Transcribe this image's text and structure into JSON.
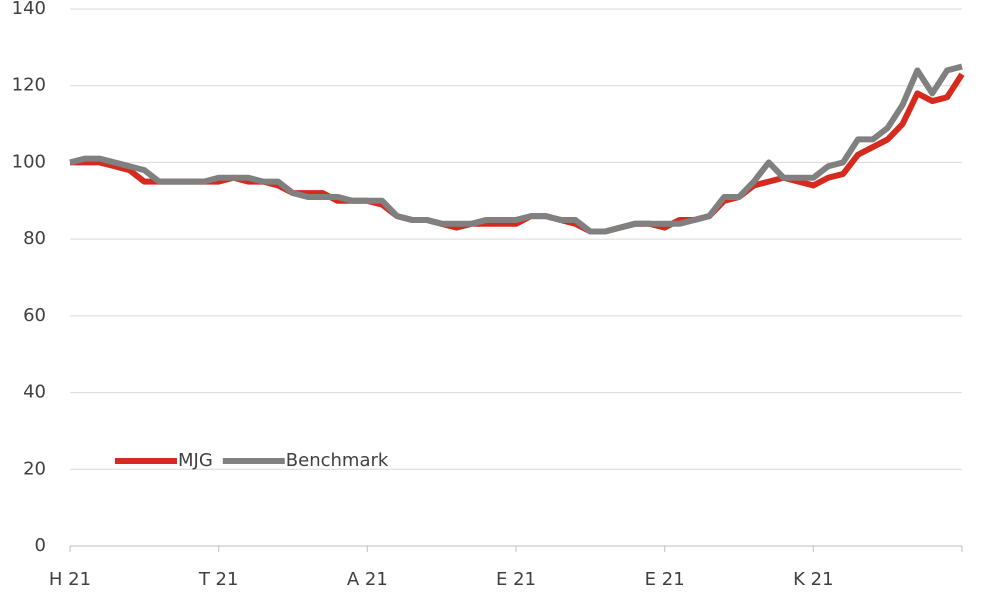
{
  "chart_data": {
    "type": "line",
    "categories": [
      "H 21",
      null,
      null,
      null,
      null,
      null,
      null,
      null,
      null,
      null,
      "T 21",
      null,
      null,
      null,
      null,
      null,
      null,
      null,
      null,
      null,
      "A 21",
      null,
      null,
      null,
      null,
      null,
      null,
      null,
      null,
      null,
      "E 21",
      null,
      null,
      null,
      null,
      null,
      null,
      null,
      null,
      null,
      "E 21",
      null,
      null,
      null,
      null,
      null,
      null,
      null,
      null,
      null,
      "K 21",
      null,
      null,
      null,
      null,
      null,
      null,
      null,
      null,
      null,
      null
    ],
    "series": [
      {
        "name": "MJG",
        "color": "#d52b1e",
        "values": [
          100,
          100,
          100,
          99,
          98,
          95,
          95,
          95,
          95,
          95,
          95,
          96,
          95,
          95,
          94,
          92,
          92,
          92,
          90,
          90,
          90,
          89,
          86,
          85,
          85,
          84,
          83,
          84,
          84,
          84,
          84,
          86,
          86,
          85,
          84,
          82,
          82,
          83,
          84,
          84,
          83,
          85,
          85,
          86,
          90,
          91,
          94,
          95,
          96,
          95,
          94,
          96,
          97,
          102,
          104,
          106,
          110,
          118,
          116,
          117,
          123
        ]
      },
      {
        "name": "Benchmark",
        "color": "#808080",
        "values": [
          100,
          101,
          101,
          100,
          99,
          98,
          95,
          95,
          95,
          95,
          96,
          96,
          96,
          95,
          95,
          92,
          91,
          91,
          91,
          90,
          90,
          90,
          86,
          85,
          85,
          84,
          84,
          84,
          85,
          85,
          85,
          86,
          86,
          85,
          85,
          82,
          82,
          83,
          84,
          84,
          84,
          84,
          85,
          86,
          91,
          91,
          95,
          100,
          96,
          96,
          96,
          99,
          100,
          106,
          106,
          109,
          115,
          124,
          118,
          124,
          125
        ]
      }
    ],
    "ylim": [
      0,
      140
    ],
    "yticks": [
      0,
      20,
      40,
      60,
      80,
      100,
      120,
      140
    ],
    "grid": true
  }
}
